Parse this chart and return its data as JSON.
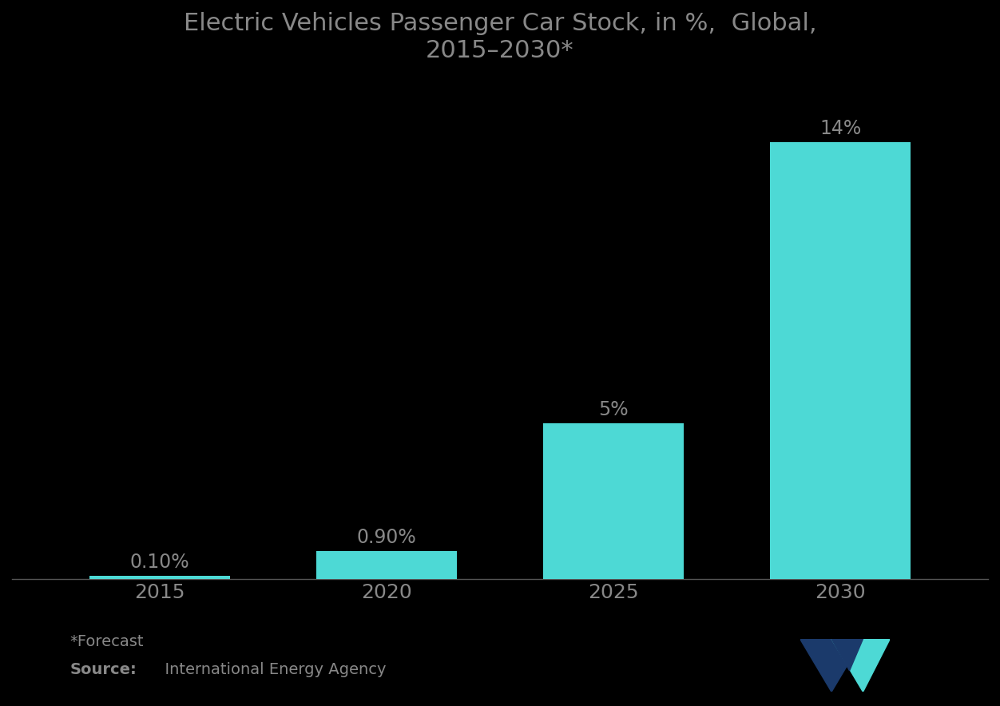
{
  "title": "Electric Vehicles Passenger Car Stock, in %,  Global,\n2015–2030*",
  "categories": [
    "2015",
    "2020",
    "2025",
    "2030"
  ],
  "values": [
    0.1,
    0.9,
    5.0,
    14.0
  ],
  "labels": [
    "0.10%",
    "0.90%",
    "5%",
    "14%"
  ],
  "bar_color": "#4DD9D5",
  "background_color": "#000000",
  "title_color": "#888888",
  "label_color": "#888888",
  "tick_color": "#888888",
  "ylim": [
    0,
    16
  ],
  "footnote": "*Forecast",
  "source_bold": "Source:",
  "source_rest": "  International Energy Agency",
  "title_fontsize": 22,
  "label_fontsize": 17,
  "tick_fontsize": 18,
  "footnote_fontsize": 14,
  "source_fontsize": 14,
  "bar_width": 0.62,
  "bottom_spine_color": "#555555"
}
